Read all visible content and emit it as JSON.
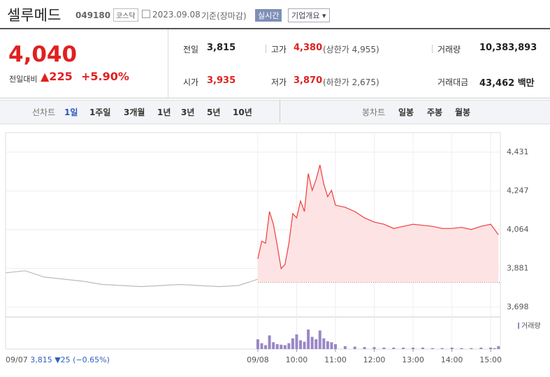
{
  "header": {
    "name": "셀루메드",
    "code": "049180",
    "market": "코스닥",
    "date": "2023.09.08",
    "basis": "기준(장마감)",
    "realtime": "실시간",
    "company_info": "기업개요"
  },
  "quote": {
    "price": "4,040",
    "change_label": "전일대비",
    "change": "▲225",
    "change_pct": "+5.90%"
  },
  "stats": [
    {
      "label": "전일",
      "value": "3,815"
    },
    {
      "label": "고가",
      "value": "4,380",
      "note": "(상한가 4,955)"
    },
    {
      "label": "거래량",
      "value": "10,383,893"
    },
    {
      "label": "시가",
      "value": "3,935"
    },
    {
      "label": "저가",
      "value": "3,870",
      "note": "(하한가 2,675)"
    },
    {
      "label": "거래대금",
      "value": "43,462 백만"
    }
  ],
  "tabs": {
    "line_label": "선차트",
    "line_periods": [
      "1일",
      "1주일",
      "3개월",
      "1년",
      "3년",
      "5년",
      "10년"
    ],
    "candle_label": "봉차트",
    "candle_periods": [
      "일봉",
      "주봉",
      "월봉"
    ]
  },
  "footer": {
    "date": "09/07",
    "close": "3,815",
    "change": "▼25",
    "pct": "(−0.65%)"
  },
  "chart_data": {
    "type": "line",
    "xlim": [
      2.5,
      15.25
    ],
    "xticks": [
      {
        "value": 9,
        "label": "09/08"
      },
      {
        "value": 10,
        "label": "10:00"
      },
      {
        "value": 11,
        "label": "11:00"
      },
      {
        "value": 12,
        "label": "12:00"
      },
      {
        "value": 13,
        "label": "13:00"
      },
      {
        "value": 14,
        "label": "14:00"
      },
      {
        "value": 15,
        "label": "15:00"
      }
    ],
    "ylim": [
      3658,
      4523
    ],
    "yticks": [
      {
        "value": 3698,
        "label": "3,698"
      },
      {
        "value": 3881,
        "label": "3,881"
      },
      {
        "value": 4064,
        "label": "4,064"
      },
      {
        "value": 4247,
        "label": "4,247"
      },
      {
        "value": 4431,
        "label": "4,431"
      }
    ],
    "grid": true,
    "baseline": 3815,
    "series": [
      {
        "color": "#bbbbbb",
        "x": [
          2.5,
          3,
          3.5,
          4,
          4.5,
          5,
          5.5,
          6,
          6.5,
          7,
          7.5,
          8,
          8.5,
          9
        ],
        "values": [
          3860,
          3870,
          3840,
          3830,
          3820,
          3805,
          3800,
          3795,
          3800,
          3805,
          3800,
          3795,
          3800,
          3830
        ]
      },
      {
        "color": "#f03c3c",
        "fill": "#fde3e4",
        "x": [
          9,
          9.1,
          9.2,
          9.3,
          9.4,
          9.5,
          9.6,
          9.7,
          9.8,
          9.9,
          10,
          10.1,
          10.2,
          10.3,
          10.4,
          10.5,
          10.6,
          10.7,
          10.8,
          10.9,
          11,
          11.25,
          11.5,
          11.75,
          12,
          12.25,
          12.5,
          12.75,
          13,
          13.25,
          13.5,
          13.75,
          14,
          14.25,
          14.5,
          14.75,
          15,
          15.1,
          15.2
        ],
        "values": [
          3926,
          4010,
          4000,
          4150,
          4090,
          3990,
          3880,
          3900,
          4000,
          4140,
          4120,
          4200,
          4150,
          4330,
          4250,
          4300,
          4370,
          4280,
          4220,
          4250,
          4180,
          4170,
          4150,
          4120,
          4100,
          4090,
          4070,
          4080,
          4090,
          4085,
          4080,
          4070,
          4070,
          4075,
          4065,
          4080,
          4090,
          4065,
          4040
        ]
      }
    ],
    "volume": {
      "name": "거래량",
      "color": "#9a86c8",
      "vlim": [
        0,
        60
      ],
      "x": [
        9,
        9.1,
        9.2,
        9.3,
        9.4,
        9.5,
        9.6,
        9.7,
        9.8,
        9.9,
        10,
        10.1,
        10.2,
        10.3,
        10.4,
        10.5,
        10.6,
        10.7,
        10.8,
        10.9,
        11,
        11.25,
        11.5,
        11.75,
        12,
        12.25,
        12.5,
        12.75,
        13,
        13.25,
        13.5,
        13.75,
        14,
        14.25,
        14.5,
        14.75,
        15,
        15.1,
        15.2
      ],
      "values": [
        20,
        12,
        8,
        28,
        14,
        10,
        9,
        8,
        12,
        22,
        30,
        18,
        15,
        40,
        25,
        20,
        38,
        22,
        16,
        14,
        10,
        6,
        5,
        4,
        4,
        3,
        3,
        3,
        3,
        3,
        2,
        2,
        3,
        2,
        2,
        3,
        3,
        2,
        6
      ]
    }
  }
}
